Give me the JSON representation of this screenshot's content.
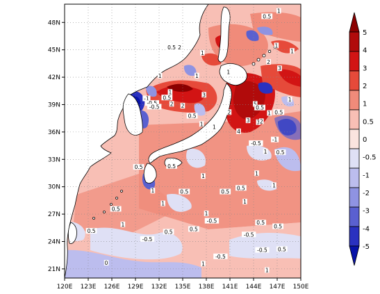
{
  "map": {
    "x_ticks": [
      "120E",
      "123E",
      "126E",
      "129E",
      "132E",
      "135E",
      "138E",
      "141E",
      "144E",
      "147E",
      "150E"
    ],
    "y_ticks": [
      "48N",
      "45N",
      "42N",
      "39N",
      "36N",
      "33N",
      "30N",
      "27N",
      "24N",
      "21N"
    ],
    "lon_range": [
      120,
      150
    ],
    "lat_range": [
      20,
      50
    ],
    "grid": "dotted",
    "contour_labels": [
      {
        "text": "0.5",
        "lon": 133.6,
        "lat": 45.2
      },
      {
        "text": "2",
        "lon": 134.6,
        "lat": 45.2
      },
      {
        "text": "1",
        "lon": 137.5,
        "lat": 44.6
      },
      {
        "text": "0.5",
        "lon": 145.7,
        "lat": 48.6
      },
      {
        "text": "1",
        "lon": 147.2,
        "lat": 49.2
      },
      {
        "text": "1",
        "lon": 146.9,
        "lat": 45.4
      },
      {
        "text": "1",
        "lon": 148.9,
        "lat": 44.8
      },
      {
        "text": "2",
        "lon": 145.9,
        "lat": 43.6
      },
      {
        "text": "3",
        "lon": 147.3,
        "lat": 42.9
      },
      {
        "text": "1",
        "lon": 132.1,
        "lat": 42.1
      },
      {
        "text": "1",
        "lon": 136.8,
        "lat": 42.1
      },
      {
        "text": "1",
        "lon": 140.8,
        "lat": 42.5
      },
      {
        "text": "-1",
        "lon": 130.4,
        "lat": 39.6
      },
      {
        "text": "-0.5",
        "lon": 131.1,
        "lat": 39.1
      },
      {
        "text": "-0.5",
        "lon": 131.4,
        "lat": 38.7
      },
      {
        "text": "0.5",
        "lon": 133.0,
        "lat": 39.7
      },
      {
        "text": "1",
        "lon": 133.4,
        "lat": 40.3
      },
      {
        "text": "2",
        "lon": 133.6,
        "lat": 39.0
      },
      {
        "text": "3",
        "lon": 137.7,
        "lat": 40.0
      },
      {
        "text": "2",
        "lon": 135.0,
        "lat": 38.8
      },
      {
        "text": "0.5",
        "lon": 136.2,
        "lat": 37.7
      },
      {
        "text": "1",
        "lon": 137.4,
        "lat": 36.8
      },
      {
        "text": "2",
        "lon": 140.9,
        "lat": 38.1
      },
      {
        "text": "1",
        "lon": 139.0,
        "lat": 36.5
      },
      {
        "text": "5",
        "lon": 144.2,
        "lat": 39.0
      },
      {
        "text": "3",
        "lon": 144.6,
        "lat": 37.0
      },
      {
        "text": "2",
        "lon": 145.0,
        "lat": 37.1
      },
      {
        "text": "4",
        "lon": 142.1,
        "lat": 36.0
      },
      {
        "text": "3",
        "lon": 143.3,
        "lat": 37.2
      },
      {
        "text": "1",
        "lon": 146.0,
        "lat": 38.0
      },
      {
        "text": "0.5",
        "lon": 144.8,
        "lat": 38.6
      },
      {
        "text": "0.5",
        "lon": 147.2,
        "lat": 38.1
      },
      {
        "text": "1",
        "lon": 148.6,
        "lat": 39.5
      },
      {
        "text": "-1",
        "lon": 146.7,
        "lat": 35.1
      },
      {
        "text": "-0.5",
        "lon": 144.3,
        "lat": 34.7
      },
      {
        "text": "1",
        "lon": 145.5,
        "lat": 33.8
      },
      {
        "text": "0.5",
        "lon": 147.4,
        "lat": 33.7
      },
      {
        "text": "0.5",
        "lon": 129.4,
        "lat": 32.1
      },
      {
        "text": "0.5",
        "lon": 133.6,
        "lat": 32.2
      },
      {
        "text": "1",
        "lon": 131.2,
        "lat": 29.5
      },
      {
        "text": "1",
        "lon": 137.6,
        "lat": 31.1
      },
      {
        "text": "1",
        "lon": 144.4,
        "lat": 31.4
      },
      {
        "text": "1",
        "lon": 146.6,
        "lat": 30.1
      },
      {
        "text": "0.5",
        "lon": 142.4,
        "lat": 29.8
      },
      {
        "text": "1",
        "lon": 142.9,
        "lat": 28.3
      },
      {
        "text": "0.5",
        "lon": 135.2,
        "lat": 29.4
      },
      {
        "text": "0.5",
        "lon": 140.4,
        "lat": 29.4
      },
      {
        "text": "-0.5",
        "lon": 138.7,
        "lat": 26.2
      },
      {
        "text": "1",
        "lon": 138.0,
        "lat": 27.0
      },
      {
        "text": "1",
        "lon": 132.5,
        "lat": 28.1
      },
      {
        "text": "0.5",
        "lon": 126.5,
        "lat": 27.5
      },
      {
        "text": "1",
        "lon": 127.4,
        "lat": 25.8
      },
      {
        "text": "-0.5",
        "lon": 130.5,
        "lat": 24.2
      },
      {
        "text": "0.5",
        "lon": 133.2,
        "lat": 25.0
      },
      {
        "text": "0.5",
        "lon": 136.4,
        "lat": 25.3
      },
      {
        "text": "-0.5",
        "lon": 143.4,
        "lat": 24.7
      },
      {
        "text": "-0.5",
        "lon": 145.1,
        "lat": 23.0
      },
      {
        "text": "0.5",
        "lon": 144.9,
        "lat": 26.0
      },
      {
        "text": "0.5",
        "lon": 147.1,
        "lat": 25.6
      },
      {
        "text": "0.5",
        "lon": 147.6,
        "lat": 23.1
      },
      {
        "text": "0",
        "lon": 125.3,
        "lat": 21.6
      },
      {
        "text": "0.5",
        "lon": 123.4,
        "lat": 25.1
      },
      {
        "text": "-0.5",
        "lon": 139.8,
        "lat": 22.3
      },
      {
        "text": "1",
        "lon": 137.6,
        "lat": 21.5
      },
      {
        "text": "1",
        "lon": 145.7,
        "lat": 20.8
      }
    ]
  },
  "colorbar": {
    "labels": [
      "5",
      "4",
      "3",
      "2",
      "1",
      "0.5",
      "0",
      "-0.5",
      "-1",
      "-2",
      "-3",
      "-4",
      "-5"
    ],
    "colors": [
      "#8b0000",
      "#b10b0b",
      "#d21414",
      "#e64a3a",
      "#f08b7a",
      "#f8bfb5",
      "#fbe4df",
      "#dfe0f5",
      "#bcbdee",
      "#8f93e2",
      "#5a60d0",
      "#2a31c0",
      "#0712a8"
    ]
  }
}
